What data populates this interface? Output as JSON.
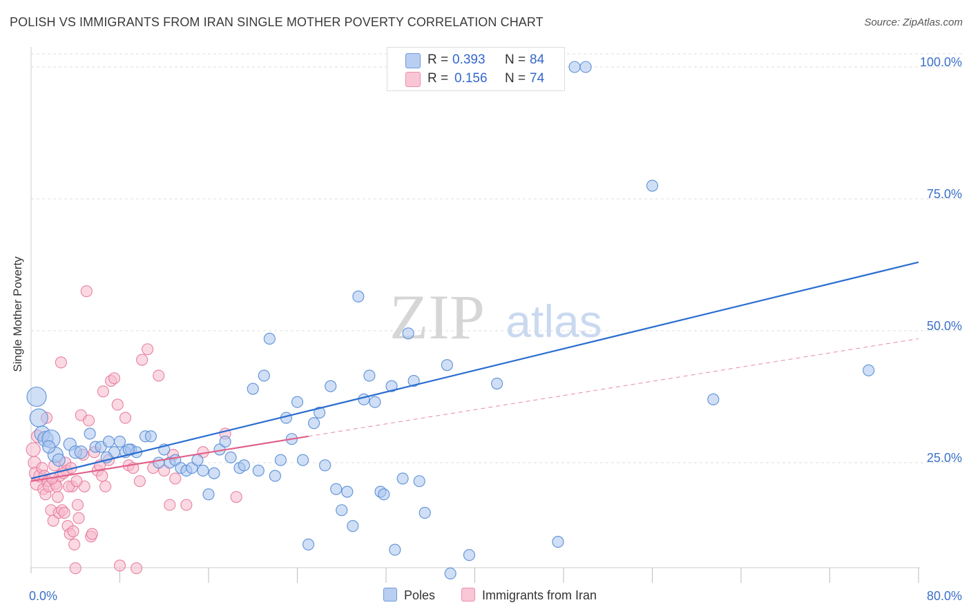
{
  "title": "POLISH VS IMMIGRANTS FROM IRAN SINGLE MOTHER POVERTY CORRELATION CHART",
  "source": "Source: ZipAtlas.com",
  "watermark": {
    "zip": "ZIP",
    "atlas": "atlas"
  },
  "legend": {
    "r_label": "R =",
    "n_label": "N =",
    "rows": [
      {
        "r": "0.393",
        "n": "84"
      },
      {
        "r": "0.156",
        "n": "74"
      }
    ]
  },
  "bottom_legend": [
    "Poles",
    "Immigrants from Iran"
  ],
  "colors": {
    "poles_fill": "#a9c4ee",
    "poles_stroke": "#5b8fd6",
    "poles_line": "#2a6dd0",
    "iran_fill": "#f7b9cc",
    "iran_stroke": "#e77fa0",
    "iran_line": "#e0608a",
    "tick_text": "#3a6fc8",
    "grid": "#dedede"
  },
  "chart_data": {
    "type": "scatter",
    "title": "POLISH VS IMMIGRANTS FROM IRAN SINGLE MOTHER POVERTY CORRELATION CHART",
    "xlabel": "",
    "ylabel": "Single Mother Poverty",
    "xlim": [
      0,
      80
    ],
    "ylim": [
      0,
      100
    ],
    "x_tick_labels": [
      "0.0%",
      "80.0%"
    ],
    "y_ticks": [
      25,
      50,
      75,
      100
    ],
    "y_tick_labels": [
      "25.0%",
      "50.0%",
      "75.0%",
      "100.0%"
    ],
    "grid": true,
    "series": [
      {
        "name": "Poles",
        "r": 0.393,
        "n": 84,
        "trend": {
          "x0": 0,
          "y0": 22.0,
          "x1": 80,
          "y1": 63.0,
          "dashed_to": null
        },
        "points": [
          [
            0.5,
            37.5,
            14
          ],
          [
            0.7,
            33.5,
            13
          ],
          [
            1.0,
            30.5,
            11
          ],
          [
            1.3,
            29.5,
            11
          ],
          [
            1.8,
            29.5,
            13
          ],
          [
            2.2,
            26.5,
            11
          ],
          [
            2.5,
            25.5,
            9
          ],
          [
            3.5,
            28.5,
            9
          ],
          [
            4.0,
            27.0,
            9
          ],
          [
            4.5,
            27.0,
            9
          ],
          [
            5.3,
            30.5,
            8
          ],
          [
            5.8,
            28.0,
            8
          ],
          [
            6.3,
            28.0,
            8
          ],
          [
            7.0,
            29.0,
            8
          ],
          [
            7.5,
            27.0,
            8
          ],
          [
            8.0,
            29.0,
            8
          ],
          [
            8.5,
            27.0,
            8
          ],
          [
            9.0,
            27.5,
            8
          ],
          [
            9.5,
            27.0,
            8
          ],
          [
            10.3,
            30.0,
            8
          ],
          [
            10.8,
            30.0,
            8
          ],
          [
            11.5,
            25.0,
            8
          ],
          [
            12.0,
            27.5,
            8
          ],
          [
            12.5,
            25.0,
            8
          ],
          [
            13.0,
            25.5,
            8
          ],
          [
            13.5,
            24.0,
            8
          ],
          [
            14.0,
            23.5,
            8
          ],
          [
            14.5,
            24.0,
            8
          ],
          [
            15.0,
            25.5,
            8
          ],
          [
            15.5,
            23.5,
            8
          ],
          [
            16.0,
            19.0,
            8
          ],
          [
            16.5,
            23.0,
            8
          ],
          [
            17.0,
            27.5,
            8
          ],
          [
            17.5,
            29.0,
            8
          ],
          [
            18.0,
            26.0,
            8
          ],
          [
            18.8,
            24.0,
            8
          ],
          [
            19.2,
            24.5,
            8
          ],
          [
            20.0,
            39.0,
            8
          ],
          [
            20.5,
            23.5,
            8
          ],
          [
            21.0,
            41.5,
            8
          ],
          [
            21.5,
            48.5,
            8
          ],
          [
            22.0,
            22.5,
            8
          ],
          [
            22.5,
            25.5,
            8
          ],
          [
            23.0,
            33.5,
            8
          ],
          [
            23.5,
            29.5,
            8
          ],
          [
            24.0,
            36.5,
            8
          ],
          [
            24.5,
            25.5,
            8
          ],
          [
            25.0,
            9.5,
            8
          ],
          [
            25.5,
            32.5,
            8
          ],
          [
            26.0,
            34.5,
            8
          ],
          [
            26.5,
            24.5,
            8
          ],
          [
            27.0,
            39.5,
            8
          ],
          [
            27.5,
            20.0,
            8
          ],
          [
            28.0,
            16.0,
            8
          ],
          [
            28.5,
            19.5,
            8
          ],
          [
            29.0,
            13.0,
            8
          ],
          [
            29.5,
            56.5,
            8
          ],
          [
            30.0,
            37.0,
            8
          ],
          [
            30.5,
            41.5,
            8
          ],
          [
            31.0,
            36.5,
            8
          ],
          [
            31.5,
            19.5,
            8
          ],
          [
            31.8,
            19.0,
            8
          ],
          [
            32.5,
            39.5,
            8
          ],
          [
            32.8,
            8.5,
            8
          ],
          [
            33.5,
            22.0,
            8
          ],
          [
            34.0,
            49.5,
            8
          ],
          [
            34.5,
            40.5,
            8
          ],
          [
            35.0,
            21.5,
            8
          ],
          [
            35.5,
            15.5,
            8
          ],
          [
            37.5,
            43.5,
            8
          ],
          [
            37.8,
            4.0,
            8
          ],
          [
            39.5,
            7.5,
            8
          ],
          [
            42.0,
            40.0,
            8
          ],
          [
            47.5,
            10.0,
            8
          ],
          [
            49.0,
            100.0,
            8
          ],
          [
            50.0,
            100.0,
            8
          ],
          [
            56.0,
            77.5,
            8
          ],
          [
            61.5,
            37.0,
            8
          ],
          [
            75.5,
            42.5,
            8
          ],
          [
            36.2,
            100.0,
            8
          ],
          [
            43.0,
            100.0,
            8
          ],
          [
            1.6,
            28.0,
            9
          ],
          [
            6.8,
            26.0,
            8
          ],
          [
            8.8,
            27.5,
            8
          ]
        ]
      },
      {
        "name": "Immigrants from Iran",
        "r": 0.156,
        "n": 74,
        "trend": {
          "x0": 0,
          "y0": 21.5,
          "x1": 25,
          "y1": 30.0,
          "dashed_to": [
            80,
            48.5
          ]
        },
        "points": [
          [
            0.2,
            27.5,
            10
          ],
          [
            0.3,
            25.0,
            9
          ],
          [
            0.4,
            23.0,
            9
          ],
          [
            0.5,
            21.0,
            9
          ],
          [
            0.6,
            30.0,
            9
          ],
          [
            0.8,
            22.5,
            9
          ],
          [
            1.0,
            24.0,
            8
          ],
          [
            1.1,
            20.0,
            8
          ],
          [
            1.2,
            22.5,
            8
          ],
          [
            1.3,
            19.0,
            8
          ],
          [
            1.4,
            33.5,
            8
          ],
          [
            1.5,
            21.5,
            8
          ],
          [
            1.6,
            20.5,
            8
          ],
          [
            1.8,
            16.0,
            8
          ],
          [
            2.0,
            14.0,
            8
          ],
          [
            2.1,
            24.5,
            8
          ],
          [
            2.2,
            21.0,
            8
          ],
          [
            2.3,
            20.5,
            8
          ],
          [
            2.4,
            18.5,
            8
          ],
          [
            2.5,
            15.5,
            8
          ],
          [
            2.6,
            22.5,
            8
          ],
          [
            2.7,
            44.0,
            8
          ],
          [
            2.8,
            16.0,
            8
          ],
          [
            3.0,
            15.5,
            8
          ],
          [
            3.1,
            25.0,
            8
          ],
          [
            3.2,
            23.5,
            8
          ],
          [
            3.3,
            13.0,
            8
          ],
          [
            3.5,
            11.5,
            8
          ],
          [
            3.6,
            24.0,
            8
          ],
          [
            3.7,
            20.5,
            8
          ],
          [
            3.8,
            12.0,
            8
          ],
          [
            3.9,
            9.5,
            8
          ],
          [
            4.0,
            5.0,
            8
          ],
          [
            4.2,
            17.0,
            8
          ],
          [
            4.3,
            14.5,
            8
          ],
          [
            4.5,
            34.0,
            8
          ],
          [
            4.7,
            26.5,
            8
          ],
          [
            4.8,
            20.5,
            8
          ],
          [
            5.0,
            57.5,
            8
          ],
          [
            5.2,
            33.0,
            8
          ],
          [
            5.4,
            11.0,
            8
          ],
          [
            5.5,
            11.5,
            8
          ],
          [
            5.7,
            27.0,
            8
          ],
          [
            6.0,
            23.5,
            8
          ],
          [
            6.2,
            24.5,
            8
          ],
          [
            6.5,
            38.5,
            8
          ],
          [
            6.7,
            20.5,
            8
          ],
          [
            7.0,
            25.5,
            8
          ],
          [
            7.2,
            40.5,
            8
          ],
          [
            7.5,
            41.0,
            8
          ],
          [
            7.8,
            36.0,
            8
          ],
          [
            8.0,
            5.5,
            8
          ],
          [
            8.5,
            33.5,
            8
          ],
          [
            8.8,
            24.5,
            8
          ],
          [
            9.2,
            24.0,
            8
          ],
          [
            9.5,
            5.0,
            8
          ],
          [
            10.0,
            44.5,
            8
          ],
          [
            10.5,
            46.5,
            8
          ],
          [
            11.0,
            24.0,
            8
          ],
          [
            11.5,
            41.5,
            8
          ],
          [
            12.0,
            23.5,
            8
          ],
          [
            12.5,
            17.0,
            8
          ],
          [
            12.8,
            26.5,
            8
          ],
          [
            13.0,
            22.0,
            8
          ],
          [
            14.0,
            17.0,
            8
          ],
          [
            15.5,
            27.0,
            8
          ],
          [
            17.5,
            30.5,
            8
          ],
          [
            18.5,
            18.5,
            8
          ],
          [
            1.9,
            22.0,
            8
          ],
          [
            2.9,
            23.0,
            8
          ],
          [
            3.4,
            20.5,
            8
          ],
          [
            4.1,
            21.5,
            8
          ],
          [
            6.4,
            22.5,
            8
          ],
          [
            9.8,
            21.5,
            8
          ]
        ]
      }
    ]
  }
}
